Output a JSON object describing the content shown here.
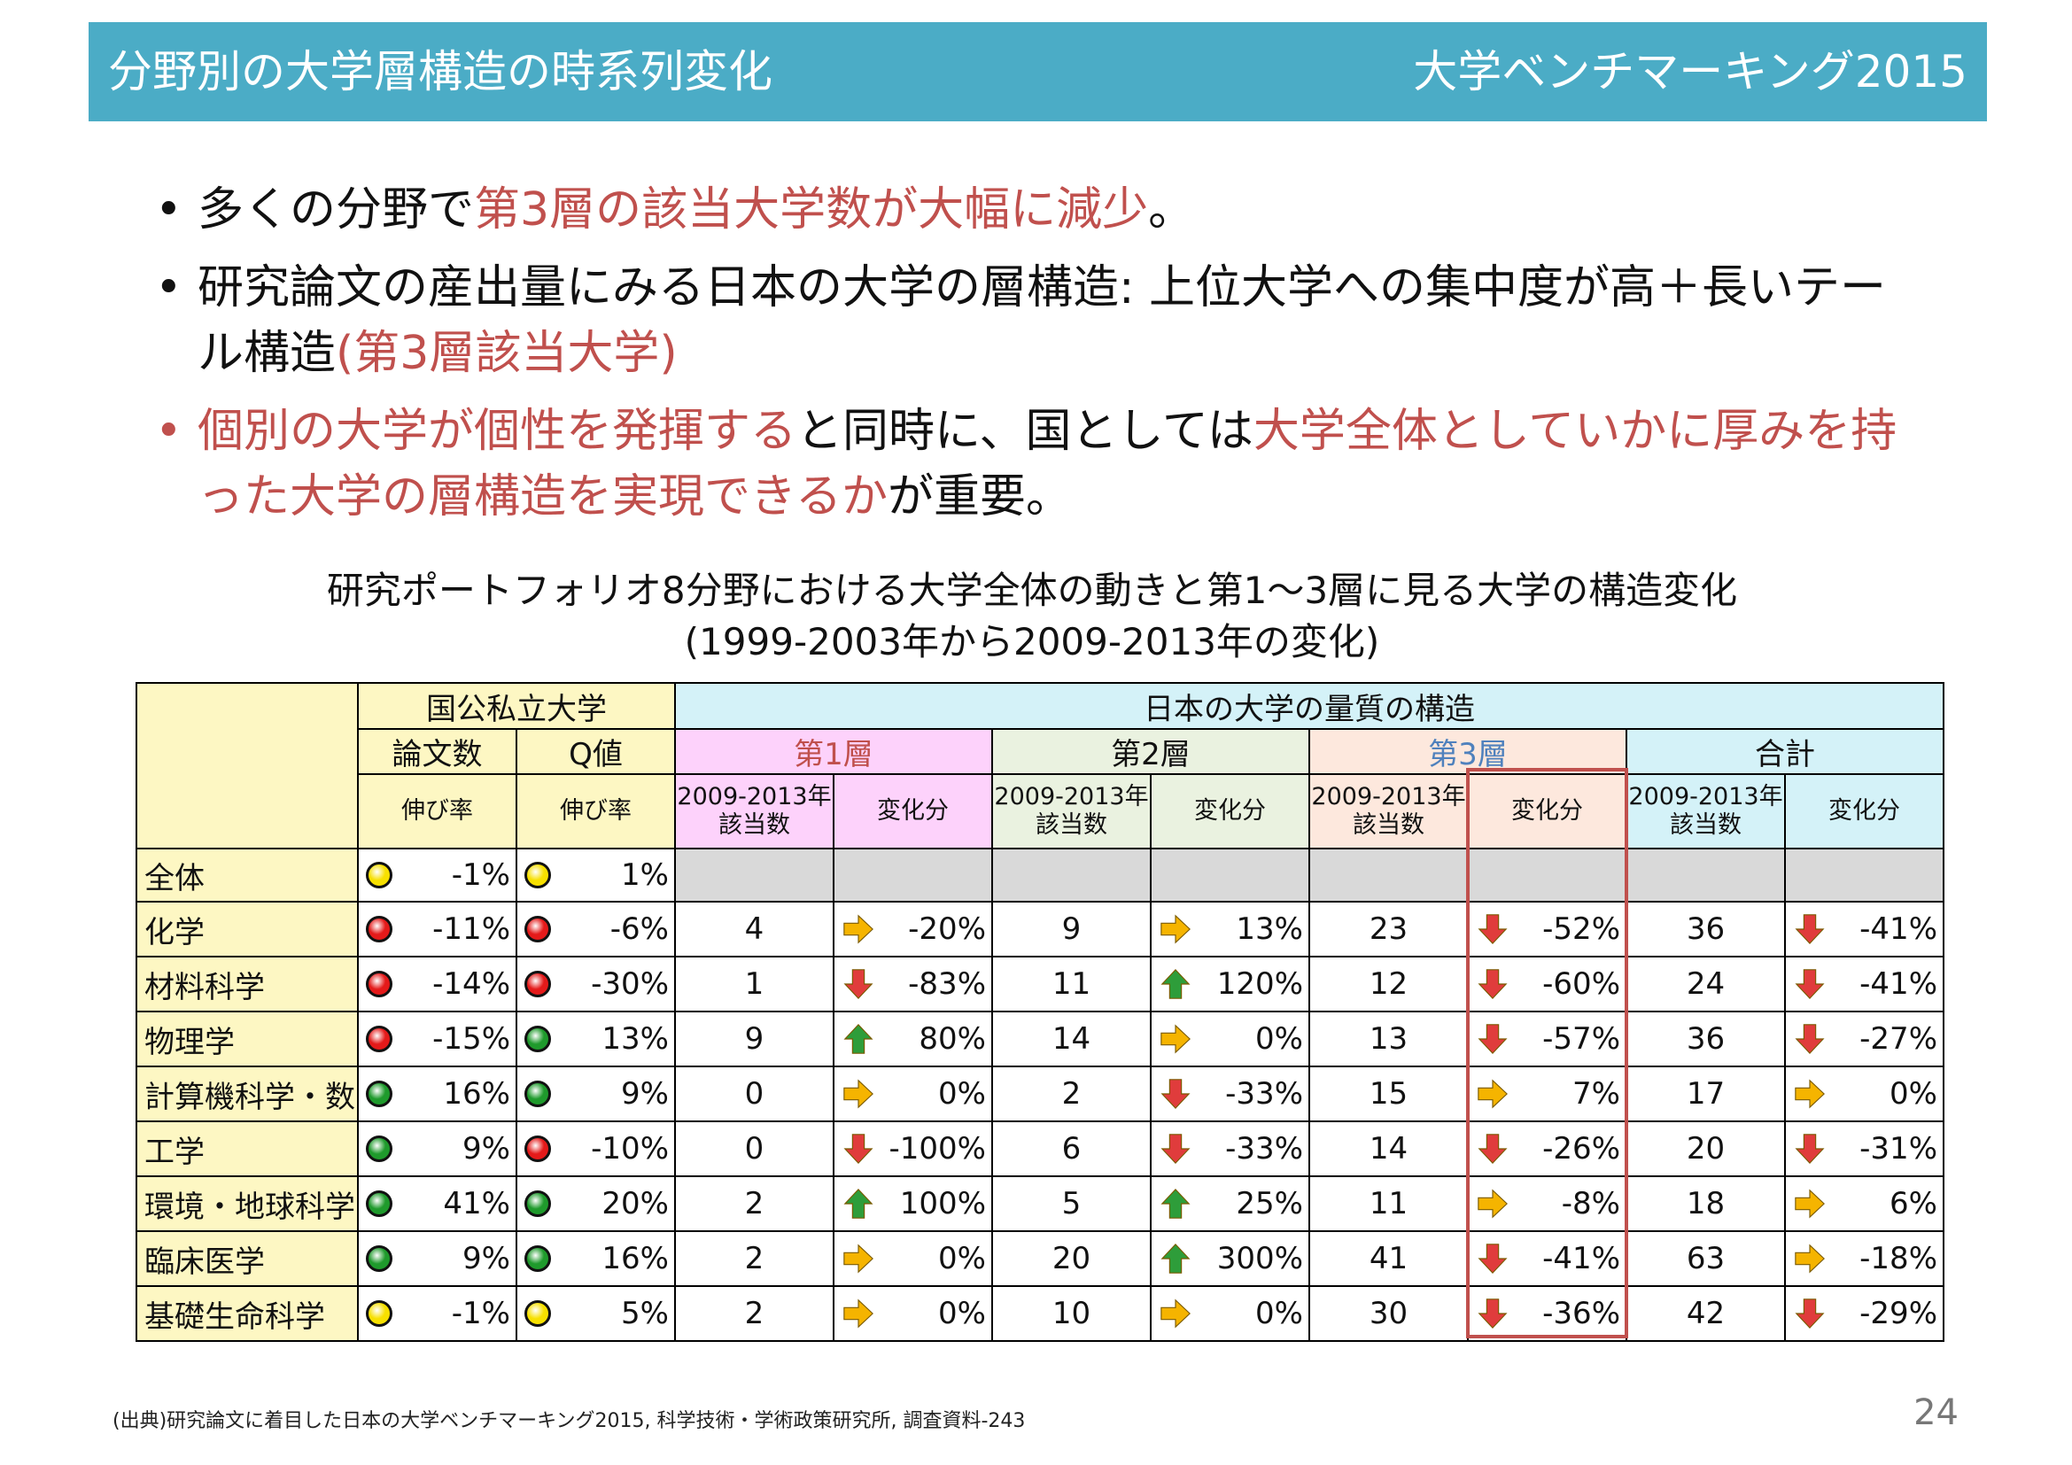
{
  "header": {
    "title": "分野別の大学層構造の時系列変化",
    "brand": "大学ベンチマーキング2015"
  },
  "bullets": [
    {
      "marker": "•",
      "parts": [
        {
          "text": "多くの分野で",
          "red": false
        },
        {
          "text": "第3層の該当大学数が大幅に減少",
          "red": true
        },
        {
          "text": "。",
          "red": false
        }
      ]
    },
    {
      "marker": "•",
      "parts": [
        {
          "text": "研究論文の産出量にみる日本の大学の層構造: 上位大学への集中度が高＋長いテール構造",
          "red": false
        },
        {
          "text": "(第3層該当大学)",
          "red": true
        }
      ]
    },
    {
      "marker": "•",
      "marker_red": true,
      "parts": [
        {
          "text": "個別の大学が個性を発揮する",
          "red": true
        },
        {
          "text": "と同時に、国としては",
          "red": false
        },
        {
          "text": "大学全体としていかに厚みを持った大学の層構造を実現できるか",
          "red": true
        },
        {
          "text": "が重要。",
          "red": false
        }
      ]
    }
  ],
  "caption": {
    "line1": "研究ポートフォリオ8分野における大学全体の動きと第1～3層に見る大学の構造変化",
    "line2": "(1999-2003年から2009-2013年の変化)"
  },
  "table": {
    "group_national": "国公私立大学",
    "group_japan": "日本の大学の量質の構造",
    "col_papers": "論文数",
    "col_q": "Q値",
    "growth": "伸び率",
    "tier1": "第1層",
    "tier2": "第2層",
    "tier3": "第3層",
    "total": "合計",
    "count_line1": "2009-2013年",
    "count_line2": "該当数",
    "change": "変化分",
    "rows": [
      {
        "label": "全体",
        "papers": {
          "c": "yellow",
          "v": "-1%"
        },
        "q": {
          "c": "yellow",
          "v": "1%"
        },
        "blank": true
      },
      {
        "label": "化学",
        "papers": {
          "c": "red",
          "v": "-11%"
        },
        "q": {
          "c": "red",
          "v": "-6%"
        },
        "t1": {
          "n": "4",
          "a": "right",
          "v": "-20%"
        },
        "t2": {
          "n": "9",
          "a": "right",
          "v": "13%"
        },
        "t3": {
          "n": "23",
          "a": "down",
          "v": "-52%"
        },
        "tt": {
          "n": "36",
          "a": "down",
          "v": "-41%"
        }
      },
      {
        "label": "材料科学",
        "papers": {
          "c": "red",
          "v": "-14%"
        },
        "q": {
          "c": "red",
          "v": "-30%"
        },
        "t1": {
          "n": "1",
          "a": "down",
          "v": "-83%"
        },
        "t2": {
          "n": "11",
          "a": "up",
          "v": "120%"
        },
        "t3": {
          "n": "12",
          "a": "down",
          "v": "-60%"
        },
        "tt": {
          "n": "24",
          "a": "down",
          "v": "-41%"
        }
      },
      {
        "label": "物理学",
        "papers": {
          "c": "red",
          "v": "-15%"
        },
        "q": {
          "c": "green",
          "v": "13%"
        },
        "t1": {
          "n": "9",
          "a": "up",
          "v": "80%"
        },
        "t2": {
          "n": "14",
          "a": "right",
          "v": "0%"
        },
        "t3": {
          "n": "13",
          "a": "down",
          "v": "-57%"
        },
        "tt": {
          "n": "36",
          "a": "down",
          "v": "-27%"
        }
      },
      {
        "label": "計算機科学・数学",
        "papers": {
          "c": "green",
          "v": "16%"
        },
        "q": {
          "c": "green",
          "v": "9%"
        },
        "t1": {
          "n": "0",
          "a": "right",
          "v": "0%"
        },
        "t2": {
          "n": "2",
          "a": "down",
          "v": "-33%"
        },
        "t3": {
          "n": "15",
          "a": "right",
          "v": "7%"
        },
        "tt": {
          "n": "17",
          "a": "right",
          "v": "0%"
        }
      },
      {
        "label": "工学",
        "papers": {
          "c": "green",
          "v": "9%"
        },
        "q": {
          "c": "red",
          "v": "-10%"
        },
        "t1": {
          "n": "0",
          "a": "down",
          "v": "-100%"
        },
        "t2": {
          "n": "6",
          "a": "down",
          "v": "-33%"
        },
        "t3": {
          "n": "14",
          "a": "down",
          "v": "-26%"
        },
        "tt": {
          "n": "20",
          "a": "down",
          "v": "-31%"
        }
      },
      {
        "label": "環境・地球科学",
        "papers": {
          "c": "green",
          "v": "41%"
        },
        "q": {
          "c": "green",
          "v": "20%"
        },
        "t1": {
          "n": "2",
          "a": "up",
          "v": "100%"
        },
        "t2": {
          "n": "5",
          "a": "up",
          "v": "25%"
        },
        "t3": {
          "n": "11",
          "a": "right",
          "v": "-8%"
        },
        "tt": {
          "n": "18",
          "a": "right",
          "v": "6%"
        }
      },
      {
        "label": "臨床医学",
        "papers": {
          "c": "green",
          "v": "9%"
        },
        "q": {
          "c": "green",
          "v": "16%"
        },
        "t1": {
          "n": "2",
          "a": "right",
          "v": "0%"
        },
        "t2": {
          "n": "20",
          "a": "up",
          "v": "300%"
        },
        "t3": {
          "n": "41",
          "a": "down",
          "v": "-41%"
        },
        "tt": {
          "n": "63",
          "a": "right",
          "v": "-18%"
        }
      },
      {
        "label": "基礎生命科学",
        "papers": {
          "c": "yellow",
          "v": "-1%"
        },
        "q": {
          "c": "yellow",
          "v": "5%"
        },
        "t1": {
          "n": "2",
          "a": "right",
          "v": "0%"
        },
        "t2": {
          "n": "10",
          "a": "right",
          "v": "0%"
        },
        "t3": {
          "n": "30",
          "a": "down",
          "v": "-36%"
        },
        "tt": {
          "n": "42",
          "a": "down",
          "v": "-29%"
        }
      }
    ]
  },
  "footer": "(出典)研究論文に着目した日本の大学ベンチマーキング2015, 科学技術・学術政策研究所, 調査資料-243",
  "page_number": "24",
  "colors": {
    "header": "#4bacc6",
    "accent_red": "#c0504d",
    "circle_red": "#e41a1a",
    "circle_yellow": "#f7e000",
    "circle_green": "#1f9a2c",
    "arrow_up": "#2e9d3a",
    "arrow_down": "#e03c3c",
    "arrow_right": "#f5b400"
  }
}
